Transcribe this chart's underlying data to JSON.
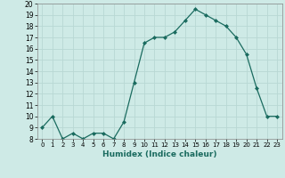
{
  "x": [
    0,
    1,
    2,
    3,
    4,
    5,
    6,
    7,
    8,
    9,
    10,
    11,
    12,
    13,
    14,
    15,
    16,
    17,
    18,
    19,
    20,
    21,
    22,
    23
  ],
  "y": [
    9,
    10,
    8,
    8.5,
    8,
    8.5,
    8.5,
    8,
    9.5,
    13,
    16.5,
    17,
    17,
    17.5,
    18.5,
    19.5,
    19,
    18.5,
    18,
    17,
    15.5,
    12.5,
    10,
    10
  ],
  "ylim": [
    8,
    20
  ],
  "xlim": [
    -0.5,
    23.5
  ],
  "yticks": [
    8,
    9,
    10,
    11,
    12,
    13,
    14,
    15,
    16,
    17,
    18,
    19,
    20
  ],
  "xtick_labels": [
    "0",
    "1",
    "2",
    "3",
    "4",
    "5",
    "6",
    "7",
    "8",
    "9",
    "10",
    "11",
    "12",
    "13",
    "14",
    "15",
    "16",
    "17",
    "18",
    "19",
    "20",
    "21",
    "22",
    "23"
  ],
  "xlabel": "Humidex (Indice chaleur)",
  "line_color": "#1a6b5f",
  "marker": "D",
  "marker_size": 2,
  "background_color": "#ceeae6",
  "grid_color": "#b8d8d4",
  "title": ""
}
